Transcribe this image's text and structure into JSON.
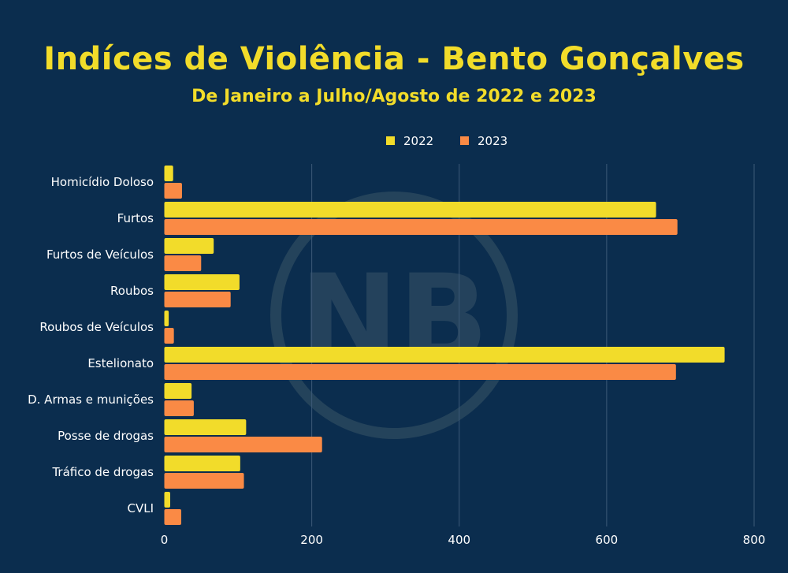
{
  "chart_data": {
    "type": "bar",
    "orientation": "horizontal",
    "title": "Indíces de Violência - Bento Gonçalves",
    "subtitle": "De Janeiro a Julho/Agosto de 2022 e 2023",
    "categories": [
      "Homicídio Doloso",
      "Furtos",
      "Furtos de Veículos",
      "Roubos",
      "Roubos de Veículos",
      "Estelionato",
      "D. Armas e munições",
      "Posse de drogas",
      "Tráfico de drogas",
      "CVLI"
    ],
    "series": [
      {
        "name": "2022",
        "color": "#f2dc2a",
        "values": [
          12,
          667,
          67,
          102,
          6,
          760,
          37,
          111,
          103,
          8
        ]
      },
      {
        "name": "2023",
        "color": "#fa8a45",
        "values": [
          24,
          696,
          50,
          90,
          13,
          694,
          40,
          214,
          108,
          23
        ]
      }
    ],
    "xlim": [
      0,
      800
    ],
    "xticks": [
      0,
      200,
      400,
      600,
      800
    ],
    "xtick_labels": [
      "0",
      "200",
      "400",
      "600",
      "800"
    ],
    "grid": true,
    "legend_position": "top-center",
    "watermark": "NB"
  }
}
